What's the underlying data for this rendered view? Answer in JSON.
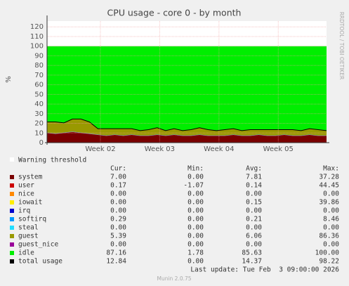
{
  "chart_data": {
    "type": "stacked-area",
    "title": "CPU usage - core 0 - by month",
    "y_label": "%",
    "watermark": "RRDTOOL / TOBI OETIKER",
    "xlim": [
      0,
      33
    ],
    "xticks": [
      {
        "value": 6.3,
        "label": "Week 02"
      },
      {
        "value": 13.3,
        "label": "Week 03"
      },
      {
        "value": 20.3,
        "label": "Week 04"
      },
      {
        "value": 27.3,
        "label": "Week 05"
      }
    ],
    "ylim": [
      0,
      126
    ],
    "yticks": [
      0,
      10,
      20,
      30,
      40,
      50,
      60,
      70,
      80,
      90,
      100,
      110,
      120
    ],
    "grid": true,
    "x": [
      0,
      1,
      2,
      3,
      4,
      5,
      6,
      7,
      8,
      9,
      10,
      11,
      12,
      13,
      14,
      15,
      16,
      17,
      18,
      19,
      20,
      21,
      22,
      23,
      24,
      25,
      26,
      27,
      28,
      29,
      30,
      31,
      32,
      33
    ],
    "warning_label": "Warning threshold",
    "stat_headers": [
      "Cur:",
      "Min:",
      "Avg:",
      "Max:"
    ],
    "series": [
      {
        "name": "system",
        "color": "#7a0000",
        "stats": [
          "7.00",
          "0.00",
          "7.81",
          "37.28"
        ],
        "values": [
          10,
          9,
          10,
          11,
          10,
          9,
          8,
          7,
          8,
          7,
          8,
          7,
          7,
          8,
          7,
          8,
          7,
          7,
          8,
          7,
          7,
          7,
          8,
          7,
          7,
          8,
          7,
          7,
          8,
          7,
          7,
          8,
          7,
          7
        ]
      },
      {
        "name": "user",
        "color": "#cc0000",
        "stats": [
          "0.17",
          "-1.07",
          "0.14",
          "44.45"
        ],
        "values": [
          0.2,
          0.2,
          0.2,
          0.2,
          0.2,
          0.2,
          0.2,
          0.2,
          0.2,
          0.2,
          0.2,
          0.2,
          0.2,
          0.2,
          0.2,
          0.2,
          0.2,
          0.2,
          0.2,
          0.2,
          0.2,
          0.2,
          0.2,
          0.2,
          0.2,
          0.2,
          0.2,
          0.2,
          0.2,
          0.2,
          0.2,
          0.2,
          0.2,
          0.2
        ]
      },
      {
        "name": "nice",
        "color": "#ff8800",
        "stats": [
          "0.00",
          "0.00",
          "0.00",
          "0.00"
        ],
        "values": [
          0,
          0,
          0,
          0,
          0,
          0,
          0,
          0,
          0,
          0,
          0,
          0,
          0,
          0,
          0,
          0,
          0,
          0,
          0,
          0,
          0,
          0,
          0,
          0,
          0,
          0,
          0,
          0,
          0,
          0,
          0,
          0,
          0,
          0
        ]
      },
      {
        "name": "iowait",
        "color": "#ffee00",
        "stats": [
          "0.00",
          "0.00",
          "0.15",
          "39.86"
        ],
        "values": [
          0,
          0,
          0,
          0,
          0,
          0,
          0,
          0,
          0,
          0,
          0,
          0,
          0,
          0,
          0,
          0,
          0,
          0,
          0,
          0,
          0,
          0,
          0,
          0,
          0,
          0,
          0,
          0,
          0,
          0,
          0,
          0,
          0,
          0
        ]
      },
      {
        "name": "irq",
        "color": "#0000cc",
        "stats": [
          "0.00",
          "0.00",
          "0.00",
          "0.00"
        ],
        "values": [
          0,
          0,
          0,
          0,
          0,
          0,
          0,
          0,
          0,
          0,
          0,
          0,
          0,
          0,
          0,
          0,
          0,
          0,
          0,
          0,
          0,
          0,
          0,
          0,
          0,
          0,
          0,
          0,
          0,
          0,
          0,
          0,
          0,
          0
        ]
      },
      {
        "name": "softirq",
        "color": "#0099ff",
        "stats": [
          "0.29",
          "0.00",
          "0.21",
          "8.46"
        ],
        "values": [
          0.3,
          0.3,
          0.3,
          0.3,
          0.3,
          0.3,
          0.3,
          0.3,
          0.3,
          0.3,
          0.3,
          0.3,
          0.3,
          0.3,
          0.3,
          0.3,
          0.3,
          0.3,
          0.3,
          0.3,
          0.3,
          0.3,
          0.3,
          0.3,
          0.3,
          0.3,
          0.3,
          0.3,
          0.3,
          0.3,
          0.3,
          0.3,
          0.3,
          0.3
        ]
      },
      {
        "name": "steal",
        "color": "#22ddff",
        "stats": [
          "0.00",
          "0.00",
          "0.00",
          "0.00"
        ],
        "values": [
          0,
          0,
          0,
          0,
          0,
          0,
          0,
          0,
          0,
          0,
          0,
          0,
          0,
          0,
          0,
          0,
          0,
          0,
          0,
          0,
          0,
          0,
          0,
          0,
          0,
          0,
          0,
          0,
          0,
          0,
          0,
          0,
          0,
          0
        ]
      },
      {
        "name": "guest",
        "color": "#999900",
        "stats": [
          "5.39",
          "0.00",
          "6.06",
          "86.36"
        ],
        "values": [
          11,
          12,
          10,
          13,
          14,
          12,
          6,
          7,
          6,
          7,
          6,
          5,
          6,
          7,
          5,
          6,
          5,
          6,
          7,
          6,
          5,
          6,
          6,
          5,
          6,
          5,
          6,
          6,
          5,
          6,
          5,
          6,
          6,
          5
        ]
      },
      {
        "name": "guest_nice",
        "color": "#990099",
        "stats": [
          "0.00",
          "0.00",
          "0.00",
          "0.00"
        ],
        "values": [
          0,
          0,
          0,
          0,
          0,
          0,
          0,
          0,
          0,
          0,
          0,
          0,
          0,
          0,
          0,
          0,
          0,
          0,
          0,
          0,
          0,
          0,
          0,
          0,
          0,
          0,
          0,
          0,
          0,
          0,
          0,
          0,
          0,
          0
        ]
      },
      {
        "name": "idle",
        "color": "#00ee00",
        "stats": [
          "87.16",
          "1.78",
          "85.63",
          "100.00"
        ],
        "values": [
          78.5,
          78.5,
          79.5,
          75.5,
          75.5,
          78.5,
          85.5,
          85.5,
          85.5,
          85.5,
          85.5,
          87.5,
          86.5,
          84.5,
          87.5,
          85.5,
          87.5,
          86.5,
          84.5,
          86.5,
          87.5,
          86.5,
          85.5,
          87.5,
          86.5,
          86.5,
          86.5,
          86.5,
          86.5,
          86.5,
          87.5,
          85.5,
          86.5,
          87.5
        ]
      },
      {
        "name": "total usage",
        "color": "#000000",
        "style": "line",
        "stats": [
          "12.84",
          "0.00",
          "14.37",
          "98.22"
        ],
        "values": [
          21.5,
          21.5,
          20.5,
          24.5,
          24.5,
          21.5,
          14.5,
          14.5,
          14.5,
          14.5,
          14.5,
          12.5,
          13.5,
          15.5,
          12.5,
          14.5,
          12.5,
          13.5,
          15.5,
          13.5,
          12.5,
          13.5,
          14.5,
          12.5,
          13.5,
          13.5,
          13.5,
          13.5,
          13.5,
          13.5,
          12.5,
          14.5,
          13.5,
          12.5
        ]
      }
    ],
    "last_update": "Last update: Tue Feb  3 09:00:00 2026",
    "footer": "Munin 2.0.75"
  }
}
